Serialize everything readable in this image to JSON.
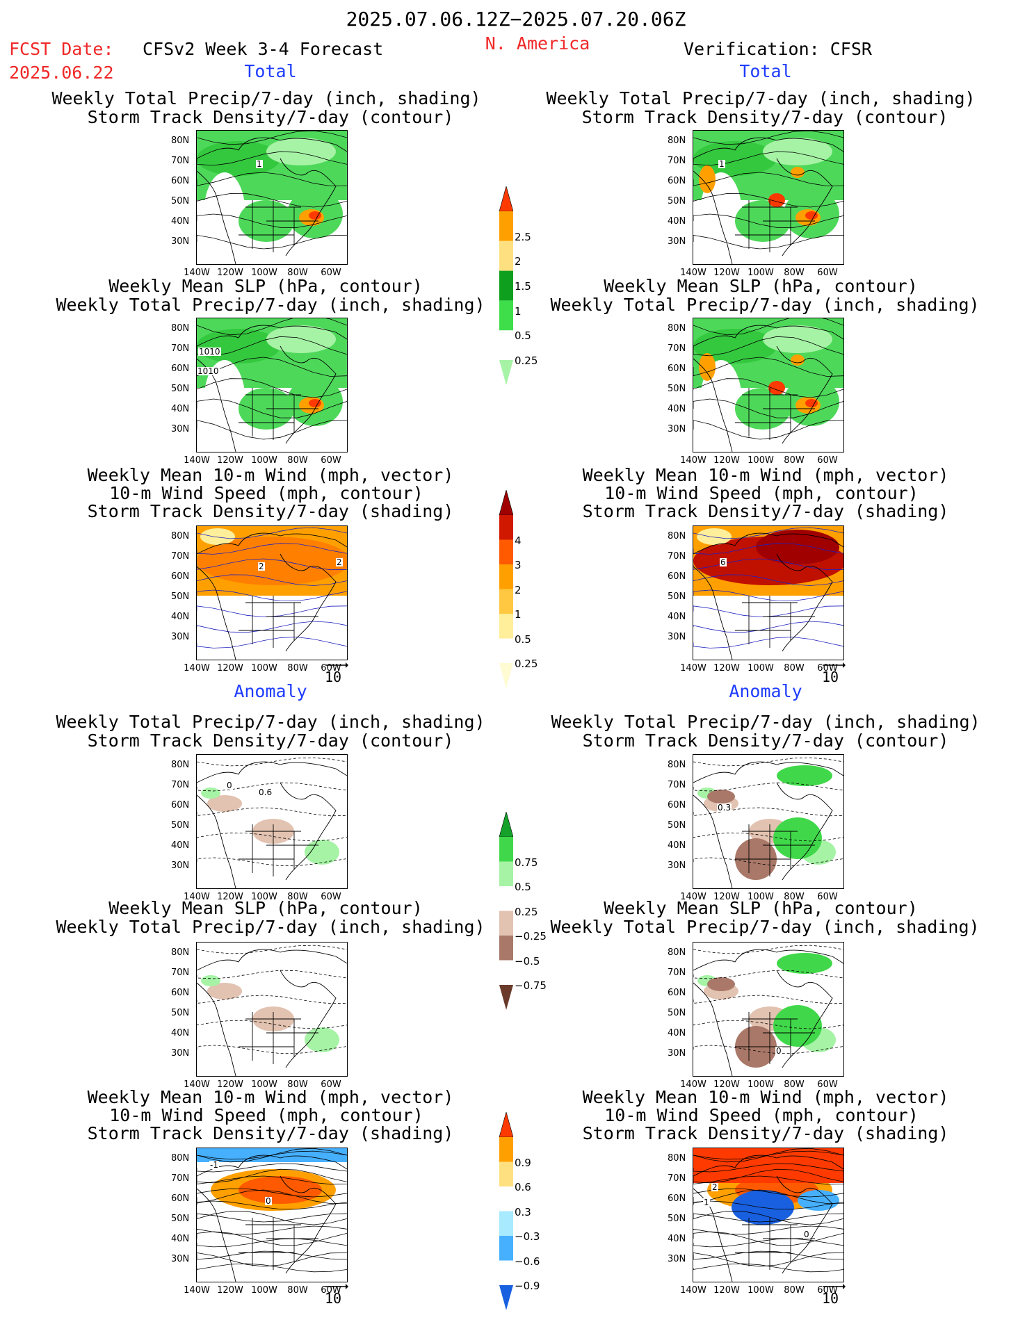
{
  "header": {
    "date_range": "2025.07.06.12Z−2025.07.20.06Z",
    "region": "N. America",
    "fcst_label": "FCST Date:",
    "fcst_date": "2025.06.22",
    "model_title": "CFSv2 Week 3-4 Forecast",
    "verification": "Verification: CFSR"
  },
  "sections": {
    "total": "Total",
    "anomaly": "Anomaly"
  },
  "panel_titles": {
    "precip_storm": [
      "Weekly Total Precip/7-day (inch, shading)",
      "Storm Track Density/7-day (contour)"
    ],
    "slp_precip": [
      "Weekly Mean SLP (hPa, contour)",
      "Weekly Total Precip/7-day (inch, shading)"
    ],
    "wind_storm": [
      "Weekly Mean 10-m Wind (mph, vector)",
      "10-m Wind Speed (mph, contour)",
      "Storm Track Density/7-day (shading)"
    ]
  },
  "axes": {
    "lat_labels": [
      "80N",
      "70N",
      "60N",
      "50N",
      "40N",
      "30N"
    ],
    "lon_labels": [
      "140W",
      "120W",
      "100W",
      "80W",
      "60W"
    ]
  },
  "vector_ref": "10",
  "map_labels": {
    "p1l": "1",
    "p1r": "1",
    "p2l_a": "1010",
    "p2l_b": "1010",
    "p3l_a": "2",
    "p3l_b": "2",
    "p3r": "6",
    "p4l_a": "0",
    "p4l_b": "0.6",
    "p4r": "0.3",
    "p5r": "0",
    "p6l_a": "-1",
    "p6l_b": "0",
    "p6r_a": "2",
    "p6r_b": "1",
    "p6r_c": "0"
  },
  "colorbars": {
    "precip_total": {
      "ticks": [
        "2.5",
        "2",
        "1.5",
        "1",
        "0.5",
        "0.25"
      ],
      "colors": [
        "#ff3a00",
        "#ffa000",
        "#ffe080",
        "#0e9f1e",
        "#3ede4a",
        "#a6f3a6"
      ]
    },
    "storm_total": {
      "ticks": [
        "4",
        "3",
        "2",
        "1",
        "0.5",
        "0.25"
      ],
      "colors": [
        "#a00000",
        "#d01800",
        "#ff5a00",
        "#ffa000",
        "#ffc840",
        "#ffee9a",
        "#fffbd2"
      ]
    },
    "precip_anom": {
      "ticks": [
        "0.75",
        "0.5",
        "0.25",
        "−0.25",
        "−0.5",
        "−0.75"
      ],
      "colors": [
        "#16a22a",
        "#40d84a",
        "#a6f3a6",
        "#ffffff",
        "#e2c2b0",
        "#a97868",
        "#6a3a2a"
      ]
    },
    "storm_anom": {
      "ticks": [
        "0.9",
        "0.6",
        "0.3",
        "−0.3",
        "−0.6",
        "−0.9"
      ],
      "colors": [
        "#ff3a00",
        "#ffa000",
        "#ffe080",
        "#ffffff",
        "#a8eaff",
        "#46b0ff",
        "#1860e0"
      ]
    }
  }
}
